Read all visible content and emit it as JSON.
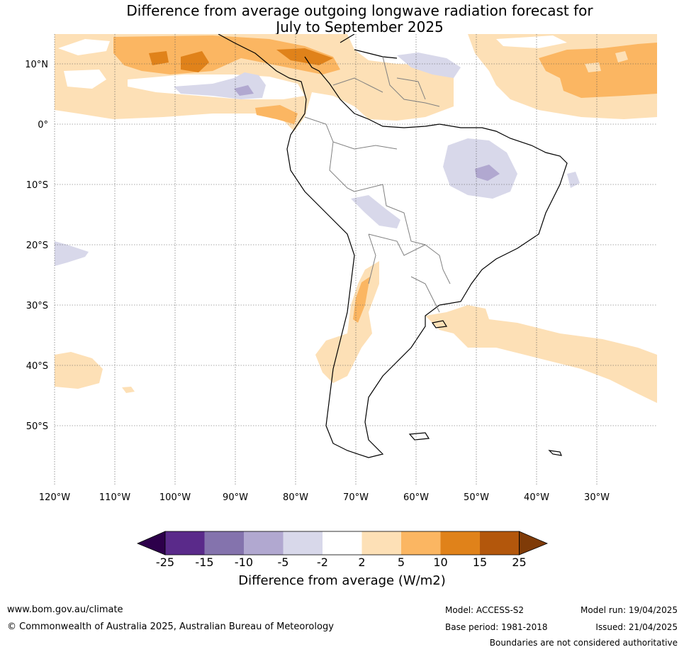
{
  "title": {
    "line1": "Difference from average outgoing longwave radiation forecast for",
    "line2": "July to September 2025"
  },
  "map": {
    "lat_labels": [
      "10°N",
      "0°",
      "10°S",
      "20°S",
      "30°S",
      "40°S",
      "50°S"
    ],
    "lon_labels": [
      "120°W",
      "110°W",
      "100°W",
      "90°W",
      "80°W",
      "70°W",
      "60°W",
      "50°W",
      "40°W",
      "30°W"
    ],
    "lon_range": [
      -120,
      -20
    ],
    "lat_range": [
      -60,
      15
    ]
  },
  "legend": {
    "title": "Difference from average (W/m2)",
    "ticks": [
      "-25",
      "-15",
      "-10",
      "-5",
      "-2",
      "2",
      "5",
      "10",
      "15",
      "25"
    ],
    "colors": {
      "below_min": "#2d004b",
      "bins": [
        "#5a2a8a",
        "#8473ad",
        "#b1a8d0",
        "#d8d8ea",
        "#ffffff",
        "#fde0b6",
        "#fbb662",
        "#e0821a",
        "#b3570c"
      ],
      "above_max": "#7f3b08"
    }
  },
  "footer": {
    "website": "www.bom.gov.au/climate",
    "copyright": "© Commonwealth of Australia 2025, Australian Bureau of Meteorology",
    "model": "Model: ACCESS-S2",
    "base_period": "Base period: 1981-2018",
    "model_run": "Model run: 19/04/2025",
    "issued": "Issued: 21/04/2025",
    "disclaimer": "Boundaries are not considered authoritative"
  }
}
